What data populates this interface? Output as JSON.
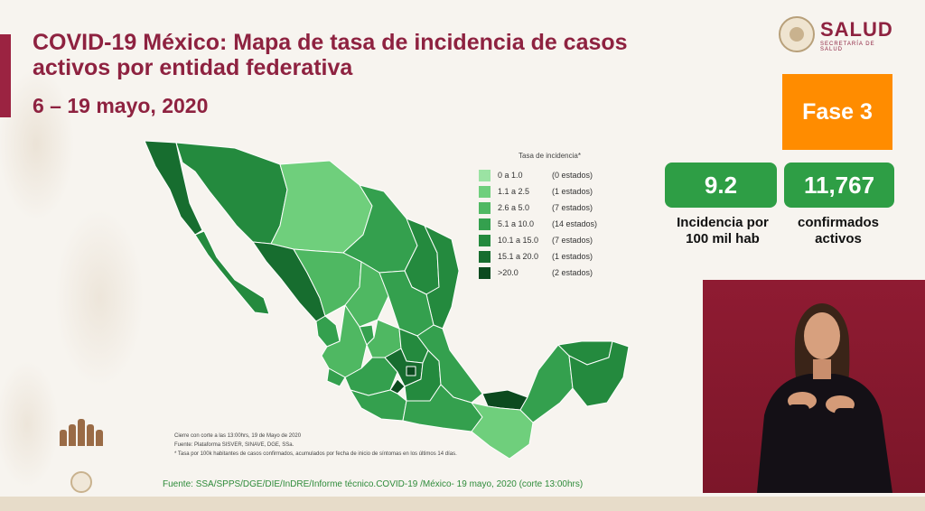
{
  "header": {
    "title": "COVID-19 México: Mapa de tasa de incidencia de casos activos por entidad federativa",
    "date_range": "6 – 19 mayo, 2020"
  },
  "logo": {
    "name": "SALUD",
    "subtitle": "SECRETARÍA DE SALUD"
  },
  "phase": {
    "label": "Fase 3",
    "color": "#ff8c00"
  },
  "stats": [
    {
      "value": "9.2",
      "label": "Incidencia por 100 mil hab"
    },
    {
      "value": "11,767",
      "label": "confirmados activos"
    }
  ],
  "legend": {
    "title": "Tasa de incidencia*",
    "items": [
      {
        "range": "0 a 1.0",
        "count": "(0 estados)",
        "color": "#9be3a3"
      },
      {
        "range": "1.1 a 2.5",
        "count": "(1 estados)",
        "color": "#6fcf7c"
      },
      {
        "range": "2.6 a 5.0",
        "count": "(7 estados)",
        "color": "#4fb862"
      },
      {
        "range": "5.1 a 10.0",
        "count": "(14 estados)",
        "color": "#34a04e"
      },
      {
        "range": "10.1 a 15.0",
        "count": "(7 estados)",
        "color": "#248a3e"
      },
      {
        "range": "15.1 a 20.0",
        "count": "(1 estados)",
        "color": "#176d2f"
      },
      {
        "range": ">20.0",
        "count": "(2 estados)",
        "color": "#0c4a1f"
      }
    ]
  },
  "footnotes": {
    "cutoff": "Cierre con corte a las 13:00hrs, 19 de Mayo de 2020",
    "source": "Fuente: Plataforma SISVER, SINAVE, DGE, SSa.",
    "note": "* Tasa por 100k habitantes de casos confirmados, acumulados por fecha de inicio de síntomas en los últimos 14 días."
  },
  "source_line": "Fuente: SSA/SPPS/DGE/DIE/InDRE/Informe técnico.COVID-19 /México- 19 mayo, 2020 (corte 13:00hrs)",
  "colors": {
    "brand_red": "#8e2240",
    "stat_green": "#2e9e45",
    "video_bg": "#8f1b32"
  }
}
